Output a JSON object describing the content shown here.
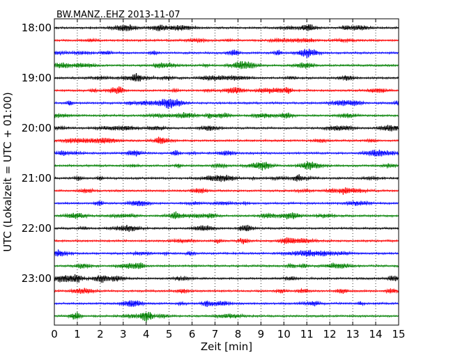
{
  "chart_data": {
    "type": "line",
    "title": "BW.MANZ..EHZ 2013-11-07",
    "xlabel": "Zeit  [min]",
    "ylabel": "UTC (Lokalzeit = UTC + 01:00)",
    "xlim": [
      0,
      15
    ],
    "x_ticks": [
      0,
      1,
      2,
      3,
      4,
      5,
      6,
      7,
      8,
      9,
      10,
      11,
      12,
      13,
      14,
      15
    ],
    "x_tick_labels": [
      "0",
      "1",
      "2",
      "3",
      "4",
      "5",
      "6",
      "7",
      "8",
      "9",
      "10",
      "11",
      "12",
      "13",
      "14",
      "15"
    ],
    "y_tick_labels": [
      "18:00",
      "19:00",
      "20:00",
      "21:00",
      "22:00",
      "23:00"
    ],
    "vertical_grid": "dotted",
    "line_colors": [
      "#000000",
      "#ff0000",
      "#0000ff",
      "#008000"
    ],
    "trace_start_times": [
      "18:00",
      "18:15",
      "18:30",
      "18:45",
      "19:00",
      "19:15",
      "19:30",
      "19:45",
      "20:00",
      "20:15",
      "20:30",
      "20:45",
      "21:00",
      "21:15",
      "21:30",
      "21:45",
      "22:00",
      "22:15",
      "22:30",
      "22:45",
      "23:00",
      "23:15",
      "23:30",
      "23:45"
    ]
  }
}
